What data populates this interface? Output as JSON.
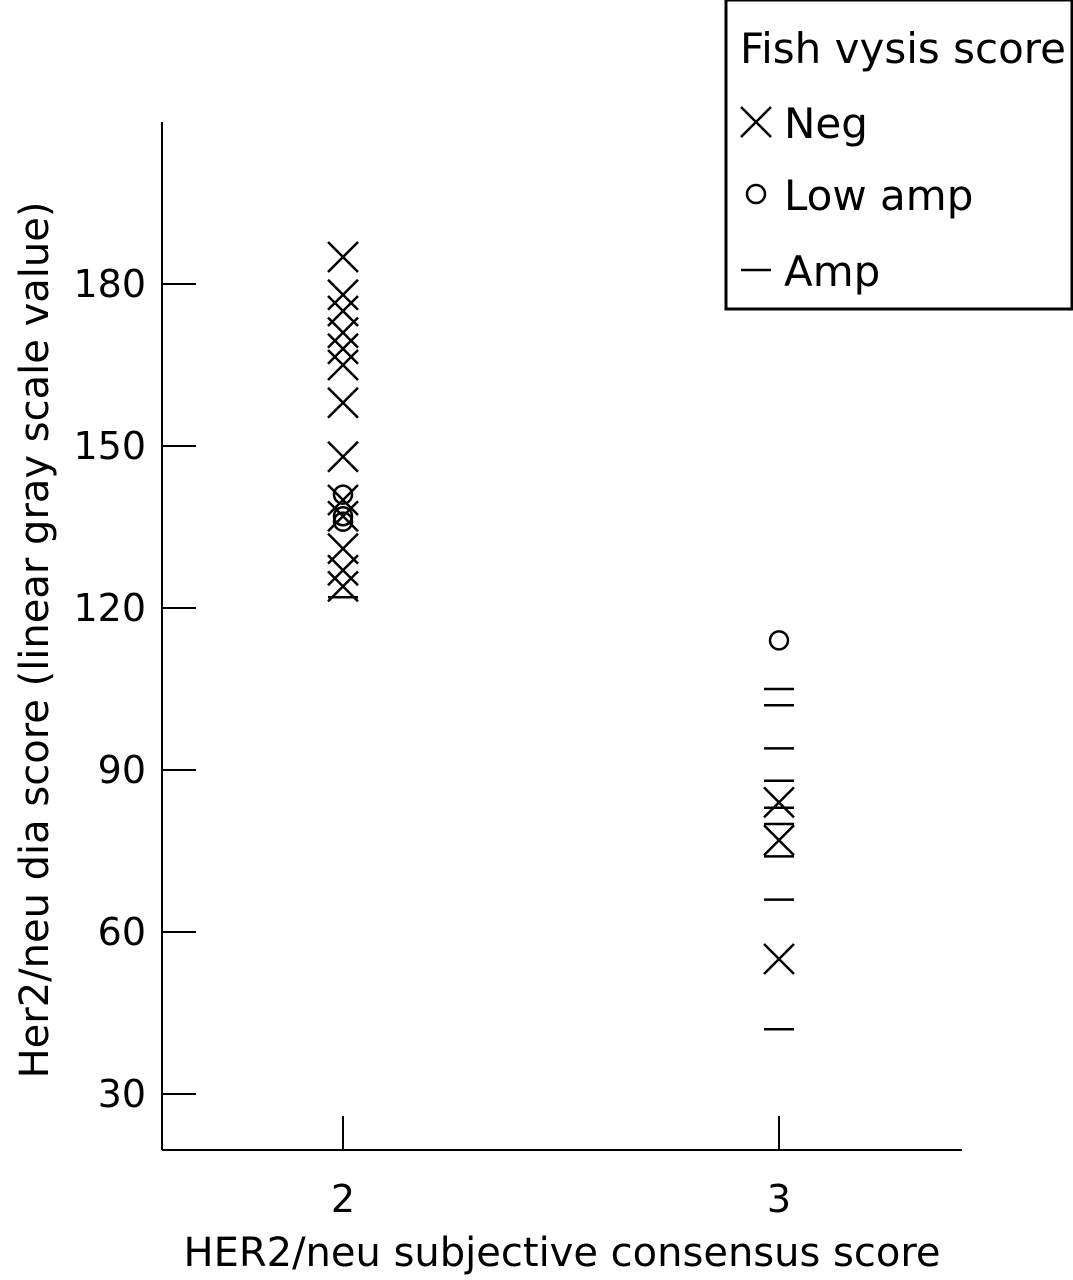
{
  "chart_data": {
    "type": "scatter",
    "xlabel": "HER2/neu subjective consensus score",
    "ylabel": "Her2/neu dia score (linear gray scale value)",
    "x_categories": [
      "2",
      "3"
    ],
    "ylim": [
      20,
      215
    ],
    "yticks": [
      30,
      60,
      90,
      120,
      150,
      180
    ],
    "grid": false,
    "legend": {
      "title": "Fish vysis score",
      "position": "top-right",
      "entries": [
        {
          "label": "Neg",
          "marker": "x"
        },
        {
          "label": "Low amp",
          "marker": "o"
        },
        {
          "label": "Amp",
          "marker": "dash"
        }
      ]
    },
    "series": [
      {
        "name": "Neg",
        "marker": "x",
        "points": [
          {
            "x": "2",
            "y": 185
          },
          {
            "x": "2",
            "y": 178
          },
          {
            "x": "2",
            "y": 175
          },
          {
            "x": "2",
            "y": 171
          },
          {
            "x": "2",
            "y": 168
          },
          {
            "x": "2",
            "y": 165
          },
          {
            "x": "2",
            "y": 158
          },
          {
            "x": "2",
            "y": 148
          },
          {
            "x": "2",
            "y": 140
          },
          {
            "x": "2",
            "y": 137
          },
          {
            "x": "2",
            "y": 131
          },
          {
            "x": "2",
            "y": 127
          },
          {
            "x": "2",
            "y": 124
          },
          {
            "x": "3",
            "y": 84
          },
          {
            "x": "3",
            "y": 77
          },
          {
            "x": "3",
            "y": 55
          }
        ]
      },
      {
        "name": "Low amp",
        "marker": "o",
        "points": [
          {
            "x": "2",
            "y": 141
          },
          {
            "x": "2",
            "y": 137
          },
          {
            "x": "2",
            "y": 136
          },
          {
            "x": "3",
            "y": 114
          }
        ]
      },
      {
        "name": "Amp",
        "marker": "dash",
        "points": [
          {
            "x": "2",
            "y": 122
          },
          {
            "x": "3",
            "y": 105
          },
          {
            "x": "3",
            "y": 102
          },
          {
            "x": "3",
            "y": 94
          },
          {
            "x": "3",
            "y": 88
          },
          {
            "x": "3",
            "y": 83
          },
          {
            "x": "3",
            "y": 80
          },
          {
            "x": "3",
            "y": 74
          },
          {
            "x": "3",
            "y": 66
          },
          {
            "x": "3",
            "y": 42
          }
        ]
      }
    ]
  }
}
